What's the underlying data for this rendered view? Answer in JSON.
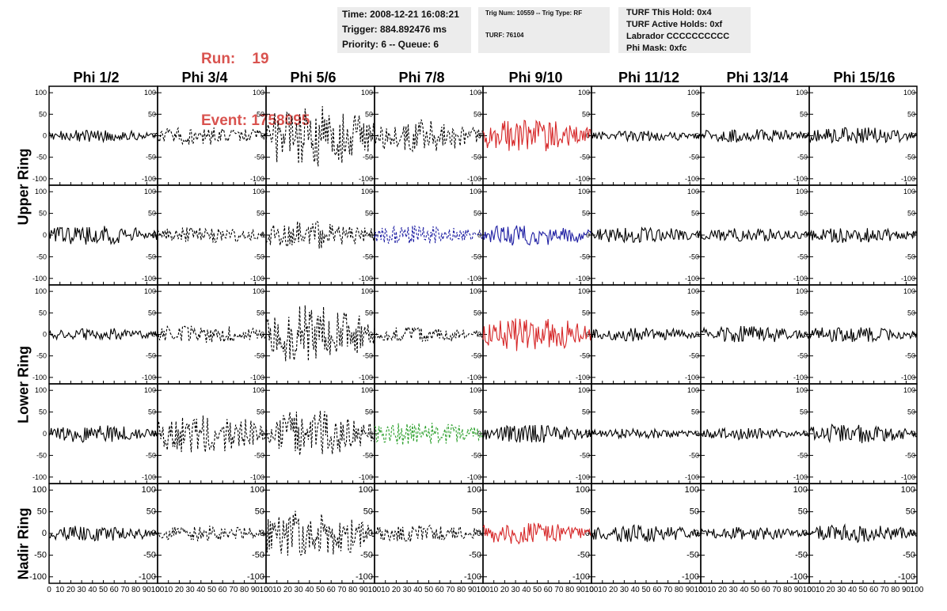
{
  "header": {
    "run_label": "Run:",
    "run_value": "19",
    "event_label": "Event:",
    "event_value": "1758095",
    "time": "Time: 2008-12-21 16:08:21",
    "trigger": "Trigger: 884.892476 ms",
    "priority": "Priority: 6 -- Queue: 6",
    "trig_num": "Trig Num: 10559 -- Trig Type: RF",
    "turf": "TURF: 76104",
    "turf_hold": "TURF This Hold: 0x4",
    "turf_active": "TURF Active Holds: 0xf",
    "labrador": "Labrador CCCCCCCCCC",
    "phi_mask": "Phi Mask: 0xfc",
    "run_color": "#d9534f"
  },
  "columns": [
    "Phi 1/2",
    "Phi 3/4",
    "Phi 5/6",
    "Phi 7/8",
    "Phi 9/10",
    "Phi 11/12",
    "Phi 13/14",
    "Phi 15/16"
  ],
  "ring_labels": [
    "Upper Ring",
    "Lower Ring",
    "Nadir Ring"
  ],
  "chart_data": {
    "type": "line",
    "grid": "8 columns x 5 rows of waveform panels",
    "xlim": [
      0,
      100
    ],
    "ylim": [
      -115,
      115
    ],
    "x_ticks": [
      0,
      10,
      20,
      30,
      40,
      50,
      60,
      70,
      80,
      90,
      100
    ],
    "y_ticks": [
      -100,
      -50,
      0,
      50,
      100
    ],
    "panels": [
      [
        {
          "style": "solid",
          "color": "#000000",
          "amp": 14
        },
        {
          "style": "dashed",
          "color": "#000000",
          "amp": 22
        },
        {
          "style": "dashed",
          "color": "#000000",
          "amp": 75
        },
        {
          "style": "dashed",
          "color": "#000000",
          "amp": 38
        },
        {
          "style": "solid",
          "color": "#d62728",
          "amp": 38
        },
        {
          "style": "solid",
          "color": "#000000",
          "amp": 13
        },
        {
          "style": "solid",
          "color": "#000000",
          "amp": 16
        },
        {
          "style": "solid",
          "color": "#000000",
          "amp": 20
        }
      ],
      [
        {
          "style": "solid",
          "color": "#000000",
          "amp": 22
        },
        {
          "style": "dashed",
          "color": "#000000",
          "amp": 18
        },
        {
          "style": "dashed",
          "color": "#000000",
          "amp": 35
        },
        {
          "style": "dashed",
          "color": "#1f1fa3",
          "amp": 22
        },
        {
          "style": "solid",
          "color": "#1f1fa3",
          "amp": 25
        },
        {
          "style": "solid",
          "color": "#000000",
          "amp": 18
        },
        {
          "style": "solid",
          "color": "#000000",
          "amp": 16
        },
        {
          "style": "solid",
          "color": "#000000",
          "amp": 18
        }
      ],
      [
        {
          "style": "solid",
          "color": "#000000",
          "amp": 15
        },
        {
          "style": "dashed",
          "color": "#000000",
          "amp": 22
        },
        {
          "style": "dashed",
          "color": "#000000",
          "amp": 70
        },
        {
          "style": "dashed",
          "color": "#000000",
          "amp": 18
        },
        {
          "style": "solid",
          "color": "#d62728",
          "amp": 40
        },
        {
          "style": "solid",
          "color": "#000000",
          "amp": 16
        },
        {
          "style": "solid",
          "color": "#000000",
          "amp": 20
        },
        {
          "style": "solid",
          "color": "#000000",
          "amp": 18
        }
      ],
      [
        {
          "style": "solid",
          "color": "#000000",
          "amp": 20
        },
        {
          "style": "dashed",
          "color": "#000000",
          "amp": 45
        },
        {
          "style": "dashed",
          "color": "#000000",
          "amp": 55
        },
        {
          "style": "dashed",
          "color": "#2ca02c",
          "amp": 28
        },
        {
          "style": "solid",
          "color": "#000000",
          "amp": 22
        },
        {
          "style": "solid",
          "color": "#000000",
          "amp": 12
        },
        {
          "style": "solid",
          "color": "#000000",
          "amp": 14
        },
        {
          "style": "solid",
          "color": "#000000",
          "amp": 22
        }
      ],
      [
        {
          "style": "solid",
          "color": "#000000",
          "amp": 18
        },
        {
          "style": "dashed",
          "color": "#000000",
          "amp": 18
        },
        {
          "style": "dashed",
          "color": "#000000",
          "amp": 55
        },
        {
          "style": "dashed",
          "color": "#000000",
          "amp": 22
        },
        {
          "style": "solid",
          "color": "#d62728",
          "amp": 25
        },
        {
          "style": "solid",
          "color": "#000000",
          "amp": 20
        },
        {
          "style": "solid",
          "color": "#000000",
          "amp": 15
        },
        {
          "style": "solid",
          "color": "#000000",
          "amp": 22
        }
      ]
    ]
  }
}
